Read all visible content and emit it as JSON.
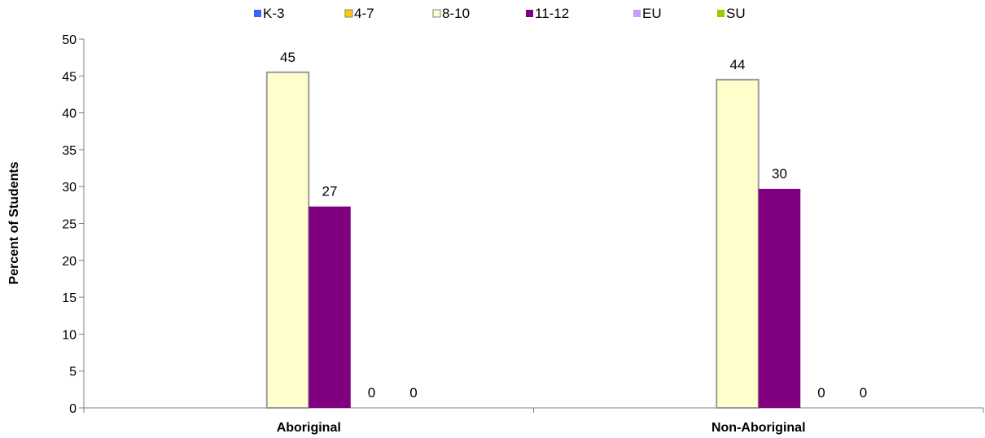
{
  "chart_data": {
    "type": "bar",
    "title": "",
    "xlabel": "",
    "ylabel": "Percent of Students",
    "ylim": [
      0,
      50
    ],
    "yticks": [
      0,
      5,
      10,
      15,
      20,
      25,
      30,
      35,
      40,
      45,
      50
    ],
    "categories": [
      "Aboriginal",
      "Non-Aboriginal"
    ],
    "legend_position": "top",
    "grid": false,
    "series": [
      {
        "name": "K-3",
        "color": "#3366ff",
        "values": [
          null,
          null
        ],
        "labels": [
          "",
          ""
        ]
      },
      {
        "name": "4-7",
        "color": "#ffcc00",
        "values": [
          null,
          null
        ],
        "labels": [
          "",
          ""
        ]
      },
      {
        "name": "8-10",
        "color": "#ffffcc",
        "values": [
          45.5,
          44.5
        ],
        "labels": [
          "45",
          "44"
        ]
      },
      {
        "name": "11-12",
        "color": "#800080",
        "values": [
          27.3,
          29.7
        ],
        "labels": [
          "27",
          "30"
        ]
      },
      {
        "name": "EU",
        "color": "#cc99ff",
        "values": [
          0,
          0
        ],
        "labels": [
          "0",
          "0"
        ]
      },
      {
        "name": "SU",
        "color": "#99cc00",
        "values": [
          0,
          0
        ],
        "labels": [
          "0",
          "0"
        ]
      }
    ]
  }
}
